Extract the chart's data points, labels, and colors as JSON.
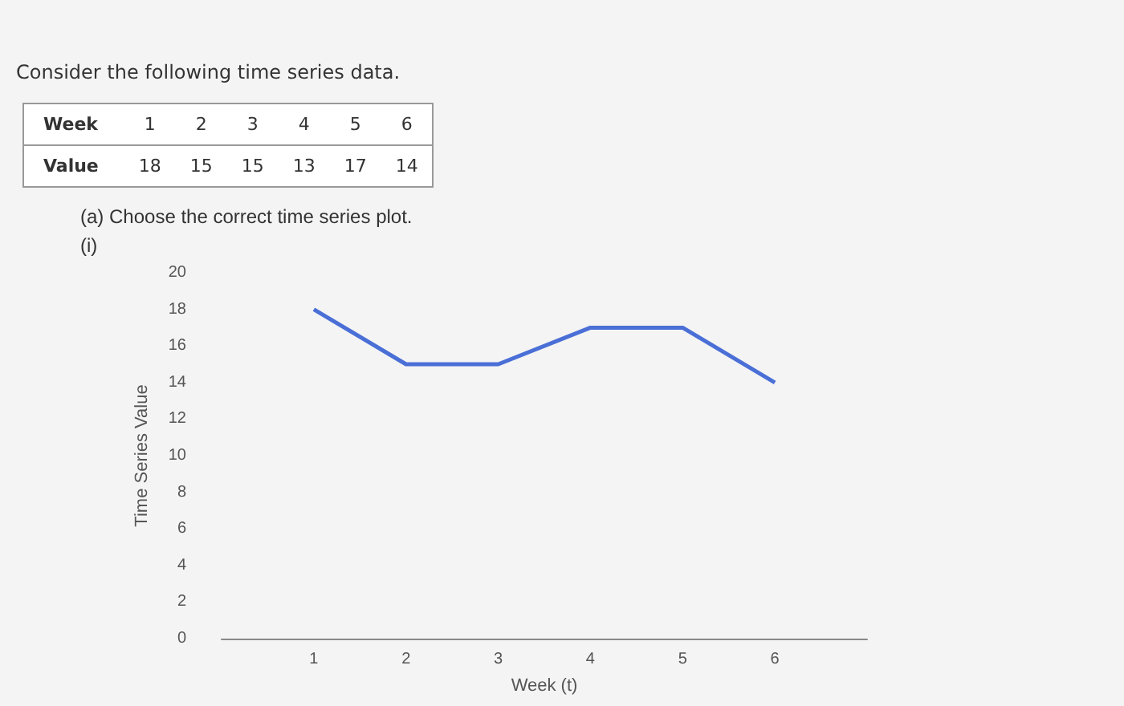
{
  "chart_data": {
    "type": "line",
    "title": "Consider the following time series data.",
    "subtitle": "(a) Choose the correct time series plot.",
    "annotations": [
      "(i)",
      "Week",
      "1",
      "2",
      "3",
      "4",
      "5",
      "6",
      "Value",
      "18",
      "15",
      "15",
      "13",
      "17",
      "14"
    ],
    "xlabel": "Week (t)",
    "ylabel": "Time Series Value",
    "x": [
      1,
      2,
      3,
      4,
      5,
      6
    ],
    "series": [
      {
        "color": "#4a6fd6",
        "values": [
          18,
          15,
          15,
          17,
          17,
          14
        ]
      }
    ],
    "xlim": [
      0,
      7
    ],
    "xticks": [
      1,
      2,
      3,
      4,
      5,
      6
    ],
    "ylim": [
      0,
      20
    ],
    "yticks": [
      0,
      2,
      4,
      6,
      8,
      10,
      12,
      14,
      16,
      18,
      20
    ],
    "grid": false,
    "marker": "none",
    "line_style": "solid"
  }
}
